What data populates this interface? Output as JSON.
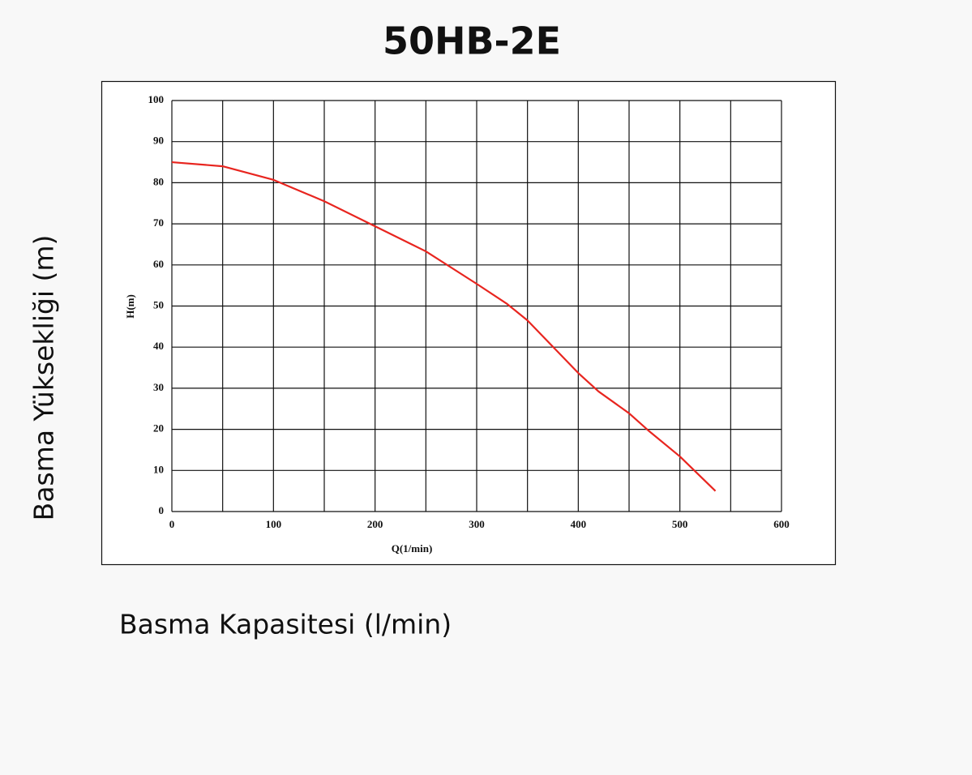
{
  "chart_data": {
    "type": "line",
    "title": "50HB-2E",
    "ylabel": "H(m)",
    "xlabel": "Q(1/min)",
    "outer_ylabel": "Basma Yüksekliği (m)",
    "outer_xlabel": "Basma Kapasitesi (l/min)",
    "x": [
      0,
      50,
      100,
      150,
      200,
      250,
      300,
      330,
      350,
      400,
      420,
      450,
      470,
      500,
      535
    ],
    "series": [
      {
        "color": "#e8251f",
        "values": [
          85,
          84,
          80.7,
          75.5,
          69.4,
          63.3,
          55.4,
          50.5,
          46.5,
          33.7,
          29.2,
          23.9,
          19.5,
          13.4,
          5
        ]
      }
    ],
    "xlim": [
      0,
      600
    ],
    "xticks": [
      0,
      100,
      200,
      300,
      400,
      500,
      600
    ],
    "xgrid": [
      0,
      50,
      100,
      150,
      200,
      250,
      300,
      350,
      400,
      450,
      500,
      550,
      600
    ],
    "ylim": [
      0,
      100
    ],
    "yticks": [
      0,
      10,
      20,
      30,
      40,
      50,
      60,
      70,
      80,
      90,
      100
    ],
    "grid": true
  }
}
